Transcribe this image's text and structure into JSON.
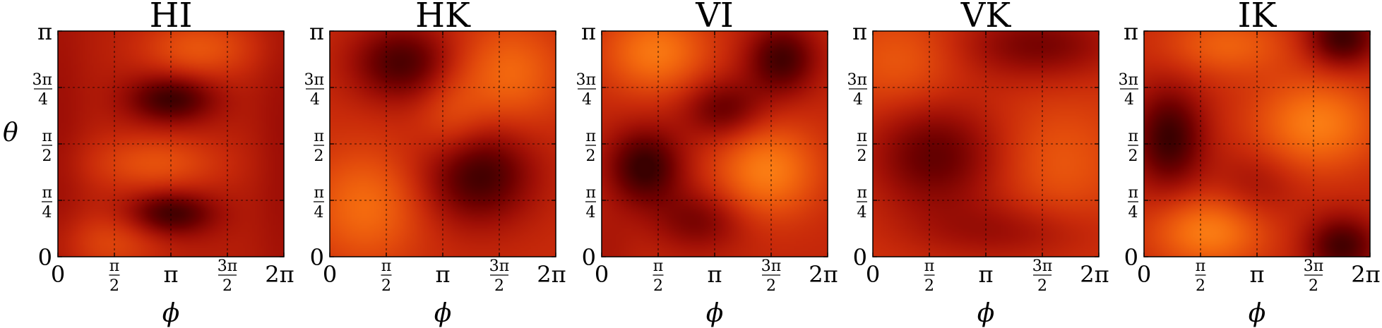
{
  "figure": {
    "ylabel": "θ",
    "xlabel": "ϕ"
  },
  "colors": {
    "colormap": [
      "#3a0000",
      "#6e0000",
      "#a01006",
      "#c82a0a",
      "#e24a0c",
      "#f46a0e",
      "#ff8a18"
    ],
    "frame": "#000000",
    "grid": "#000000"
  },
  "chart_data": [
    {
      "type": "heatmap",
      "title": "HI",
      "xlabel": "ϕ",
      "ylabel": "θ",
      "xlim": [
        0,
        6.2832
      ],
      "ylim": [
        0,
        3.1416
      ],
      "x_ticks": [
        {
          "value": 0,
          "label": "0"
        },
        {
          "value": 1.5708,
          "label": "π/2"
        },
        {
          "value": 3.1416,
          "label": "π"
        },
        {
          "value": 4.7124,
          "label": "3π/2"
        },
        {
          "value": 6.2832,
          "label": "2π"
        }
      ],
      "y_ticks": [
        {
          "value": 0,
          "label": "0"
        },
        {
          "value": 0.7854,
          "label": "π/4"
        },
        {
          "value": 1.5708,
          "label": "π/2"
        },
        {
          "value": 2.3562,
          "label": "3π/4"
        },
        {
          "value": 3.1416,
          "label": "π"
        }
      ],
      "grid": true,
      "base_level": 0.42,
      "features": [
        {
          "phi": 3.14,
          "theta": 2.2,
          "sphi": 0.85,
          "stheta": 0.24,
          "amp": -0.42
        },
        {
          "phi": 3.14,
          "theta": 0.6,
          "sphi": 0.85,
          "stheta": 0.22,
          "amp": -0.42
        },
        {
          "phi": 3.9,
          "theta": 2.9,
          "sphi": 1.1,
          "stheta": 0.3,
          "amp": 0.3
        },
        {
          "phi": 2.7,
          "theta": 1.3,
          "sphi": 1.3,
          "stheta": 0.28,
          "amp": 0.28
        },
        {
          "phi": 1.5,
          "theta": 0.2,
          "sphi": 1.0,
          "stheta": 0.3,
          "amp": 0.22
        },
        {
          "phi": 0.0,
          "theta": 1.5,
          "sphi": 0.55,
          "stheta": 1.7,
          "amp": -0.1
        },
        {
          "phi": 6.28,
          "theta": 1.5,
          "sphi": 0.55,
          "stheta": 1.7,
          "amp": -0.1
        }
      ]
    },
    {
      "type": "heatmap",
      "title": "HK",
      "xlabel": "ϕ",
      "ylabel": "",
      "xlim": [
        0,
        6.2832
      ],
      "ylim": [
        0,
        3.1416
      ],
      "x_ticks": [
        {
          "value": 0,
          "label": "0"
        },
        {
          "value": 1.5708,
          "label": "π/2"
        },
        {
          "value": 3.1416,
          "label": "π"
        },
        {
          "value": 4.7124,
          "label": "3π/2"
        },
        {
          "value": 6.2832,
          "label": "2π"
        }
      ],
      "y_ticks": [
        {
          "value": 0,
          "label": "0"
        },
        {
          "value": 0.7854,
          "label": "π/4"
        },
        {
          "value": 1.5708,
          "label": "π/2"
        },
        {
          "value": 2.3562,
          "label": "3π/4"
        },
        {
          "value": 3.1416,
          "label": "π"
        }
      ],
      "grid": true,
      "base_level": 0.5,
      "features": [
        {
          "phi": 2.0,
          "theta": 2.7,
          "sphi": 1.0,
          "stheta": 0.38,
          "amp": -0.45
        },
        {
          "phi": 4.1,
          "theta": 1.15,
          "sphi": 1.1,
          "stheta": 0.48,
          "amp": -0.5
        },
        {
          "phi": 5.0,
          "theta": 2.55,
          "sphi": 1.0,
          "stheta": 0.5,
          "amp": 0.32
        },
        {
          "phi": 1.0,
          "theta": 0.7,
          "sphi": 1.1,
          "stheta": 0.55,
          "amp": 0.34
        },
        {
          "phi": 3.4,
          "theta": 1.9,
          "sphi": 0.7,
          "stheta": 0.45,
          "amp": 0.2
        }
      ]
    },
    {
      "type": "heatmap",
      "title": "VI",
      "xlabel": "ϕ",
      "ylabel": "",
      "xlim": [
        0,
        6.2832
      ],
      "ylim": [
        0,
        3.1416
      ],
      "x_ticks": [
        {
          "value": 0,
          "label": "0"
        },
        {
          "value": 1.5708,
          "label": "π/2"
        },
        {
          "value": 3.1416,
          "label": "π"
        },
        {
          "value": 4.7124,
          "label": "3π/2"
        },
        {
          "value": 6.2832,
          "label": "2π"
        }
      ],
      "y_ticks": [
        {
          "value": 0,
          "label": "0"
        },
        {
          "value": 0.7854,
          "label": "π/4"
        },
        {
          "value": 1.5708,
          "label": "π/2"
        },
        {
          "value": 2.3562,
          "label": "3π/4"
        },
        {
          "value": 3.1416,
          "label": "π"
        }
      ],
      "grid": true,
      "base_level": 0.48,
      "features": [
        {
          "phi": 1.5,
          "theta": 2.85,
          "sphi": 1.0,
          "stheta": 0.4,
          "amp": 0.42
        },
        {
          "phi": 5.0,
          "theta": 2.75,
          "sphi": 0.7,
          "stheta": 0.35,
          "amp": -0.45
        },
        {
          "phi": 3.4,
          "theta": 2.05,
          "sphi": 0.8,
          "stheta": 0.3,
          "amp": -0.35
        },
        {
          "phi": 1.2,
          "theta": 1.25,
          "sphi": 0.75,
          "stheta": 0.38,
          "amp": -0.5
        },
        {
          "phi": 4.6,
          "theta": 1.2,
          "sphi": 1.0,
          "stheta": 0.45,
          "amp": 0.45
        },
        {
          "phi": 2.7,
          "theta": 0.5,
          "sphi": 0.9,
          "stheta": 0.3,
          "amp": -0.28
        },
        {
          "phi": 0.1,
          "theta": 0.1,
          "sphi": 0.6,
          "stheta": 0.4,
          "amp": -0.1
        }
      ]
    },
    {
      "type": "heatmap",
      "title": "VK",
      "xlabel": "ϕ",
      "ylabel": "",
      "xlim": [
        0,
        6.2832
      ],
      "ylim": [
        0,
        3.1416
      ],
      "x_ticks": [
        {
          "value": 0,
          "label": "0"
        },
        {
          "value": 1.5708,
          "label": "π/2"
        },
        {
          "value": 3.1416,
          "label": "π"
        },
        {
          "value": 4.7124,
          "label": "3π/2"
        },
        {
          "value": 6.2832,
          "label": "2π"
        }
      ],
      "y_ticks": [
        {
          "value": 0,
          "label": "0"
        },
        {
          "value": 0.7854,
          "label": "π/4"
        },
        {
          "value": 1.5708,
          "label": "π/2"
        },
        {
          "value": 2.3562,
          "label": "3π/4"
        },
        {
          "value": 3.1416,
          "label": "π"
        }
      ],
      "grid": true,
      "base_level": 0.55,
      "features": [
        {
          "phi": 1.7,
          "theta": 1.4,
          "sphi": 1.3,
          "stheta": 0.55,
          "amp": -0.42
        },
        {
          "phi": 4.6,
          "theta": 2.95,
          "sphi": 1.6,
          "stheta": 0.35,
          "amp": -0.35
        },
        {
          "phi": 3.6,
          "theta": 0.35,
          "sphi": 1.8,
          "stheta": 0.3,
          "amp": -0.22
        },
        {
          "phi": 0.8,
          "theta": 2.7,
          "sphi": 1.1,
          "stheta": 0.45,
          "amp": 0.2
        },
        {
          "phi": 5.2,
          "theta": 1.3,
          "sphi": 1.1,
          "stheta": 0.55,
          "amp": 0.18
        }
      ]
    },
    {
      "type": "heatmap",
      "title": "IK",
      "xlabel": "ϕ",
      "ylabel": "",
      "xlim": [
        0,
        6.2832
      ],
      "ylim": [
        0,
        3.1416
      ],
      "x_ticks": [
        {
          "value": 0,
          "label": "0"
        },
        {
          "value": 1.5708,
          "label": "π/2"
        },
        {
          "value": 3.1416,
          "label": "π"
        },
        {
          "value": 4.7124,
          "label": "3π/2"
        },
        {
          "value": 6.2832,
          "label": "2π"
        }
      ],
      "y_ticks": [
        {
          "value": 0,
          "label": "0"
        },
        {
          "value": 0.7854,
          "label": "π/4"
        },
        {
          "value": 1.5708,
          "label": "π/2"
        },
        {
          "value": 2.3562,
          "label": "3π/4"
        },
        {
          "value": 3.1416,
          "label": "π"
        }
      ],
      "grid": true,
      "base_level": 0.48,
      "features": [
        {
          "phi": 0.7,
          "theta": 1.65,
          "sphi": 0.7,
          "stheta": 0.5,
          "amp": -0.48
        },
        {
          "phi": 5.5,
          "theta": 3.05,
          "sphi": 0.7,
          "stheta": 0.3,
          "amp": -0.48
        },
        {
          "phi": 5.5,
          "theta": 0.15,
          "sphi": 0.7,
          "stheta": 0.3,
          "amp": -0.45
        },
        {
          "phi": 4.8,
          "theta": 1.85,
          "sphi": 1.2,
          "stheta": 0.45,
          "amp": 0.45
        },
        {
          "phi": 1.8,
          "theta": 0.35,
          "sphi": 1.1,
          "stheta": 0.35,
          "amp": 0.45
        },
        {
          "phi": 2.3,
          "theta": 2.95,
          "sphi": 1.2,
          "stheta": 0.3,
          "amp": 0.3
        },
        {
          "phi": 3.1,
          "theta": 1.0,
          "sphi": 0.8,
          "stheta": 0.35,
          "amp": -0.15
        }
      ]
    }
  ]
}
